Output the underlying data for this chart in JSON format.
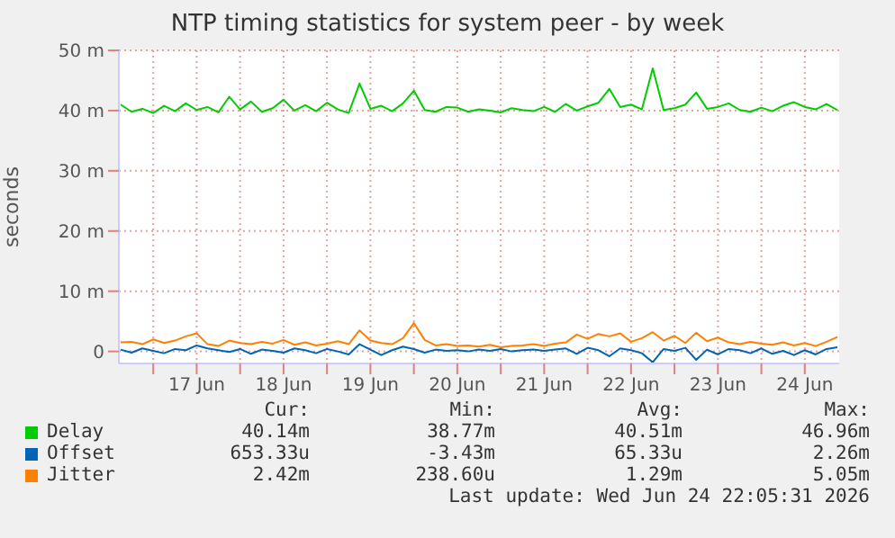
{
  "chart_data": {
    "type": "line",
    "title": "NTP timing statistics for system peer - by week",
    "ylabel": "seconds",
    "x": [
      "2026-06-16T15:00",
      "2026-06-16T18:00",
      "2026-06-16T21:00",
      "2026-06-17T00:00",
      "2026-06-17T03:00",
      "2026-06-17T06:00",
      "2026-06-17T09:00",
      "2026-06-17T12:00",
      "2026-06-17T15:00",
      "2026-06-17T18:00",
      "2026-06-17T21:00",
      "2026-06-18T00:00",
      "2026-06-18T03:00",
      "2026-06-18T06:00",
      "2026-06-18T09:00",
      "2026-06-18T12:00",
      "2026-06-18T15:00",
      "2026-06-18T18:00",
      "2026-06-18T21:00",
      "2026-06-19T00:00",
      "2026-06-19T03:00",
      "2026-06-19T06:00",
      "2026-06-19T09:00",
      "2026-06-19T12:00",
      "2026-06-19T15:00",
      "2026-06-19T18:00",
      "2026-06-19T21:00",
      "2026-06-20T00:00",
      "2026-06-20T03:00",
      "2026-06-20T06:00",
      "2026-06-20T09:00",
      "2026-06-20T12:00",
      "2026-06-20T15:00",
      "2026-06-20T18:00",
      "2026-06-20T21:00",
      "2026-06-21T00:00",
      "2026-06-21T03:00",
      "2026-06-21T06:00",
      "2026-06-21T09:00",
      "2026-06-21T12:00",
      "2026-06-21T15:00",
      "2026-06-21T18:00",
      "2026-06-21T21:00",
      "2026-06-22T00:00",
      "2026-06-22T03:00",
      "2026-06-22T06:00",
      "2026-06-22T09:00",
      "2026-06-22T12:00",
      "2026-06-22T15:00",
      "2026-06-22T18:00",
      "2026-06-22T21:00",
      "2026-06-23T00:00",
      "2026-06-23T03:00",
      "2026-06-23T06:00",
      "2026-06-23T09:00",
      "2026-06-23T12:00",
      "2026-06-23T15:00",
      "2026-06-23T18:00",
      "2026-06-23T21:00",
      "2026-06-24T00:00",
      "2026-06-24T03:00",
      "2026-06-24T06:00",
      "2026-06-24T09:00",
      "2026-06-24T12:00",
      "2026-06-24T15:00",
      "2026-06-24T18:00",
      "2026-06-24T21:00"
    ],
    "series": [
      {
        "name": "Delay",
        "color": "#00cc00",
        "values": [
          41.0,
          39.8,
          40.3,
          39.6,
          40.8,
          39.9,
          41.2,
          40.1,
          40.6,
          39.7,
          42.3,
          40.2,
          41.5,
          39.8,
          40.4,
          41.8,
          40.0,
          40.9,
          39.9,
          41.3,
          40.2,
          39.6,
          44.5,
          40.3,
          40.8,
          39.9,
          41.2,
          43.3,
          40.1,
          39.8,
          40.6,
          40.5,
          39.8,
          40.2,
          40.0,
          39.7,
          40.4,
          40.1,
          39.9,
          40.6,
          39.8,
          41.1,
          40.0,
          40.7,
          41.3,
          43.6,
          40.6,
          41.0,
          40.2,
          47.0,
          40.1,
          40.4,
          41.0,
          43.0,
          40.3,
          40.6,
          41.2,
          40.1,
          39.8,
          40.5,
          39.9,
          40.8,
          41.4,
          40.6,
          40.2,
          41.1,
          40.1
        ]
      },
      {
        "name": "Offset",
        "color": "#0066b3",
        "values": [
          0.3,
          -0.2,
          0.5,
          0.1,
          -0.3,
          0.4,
          0.2,
          1.0,
          0.5,
          0.2,
          -0.1,
          0.4,
          -0.4,
          0.3,
          0.1,
          -0.2,
          0.5,
          0.2,
          -0.3,
          0.4,
          0.0,
          -0.5,
          1.2,
          0.3,
          -0.6,
          0.2,
          0.8,
          0.4,
          -0.2,
          0.3,
          0.1,
          0.2,
          0.0,
          0.3,
          0.1,
          0.4,
          0.0,
          0.2,
          0.3,
          0.1,
          0.3,
          0.5,
          -0.4,
          0.6,
          0.2,
          -0.8,
          0.5,
          0.2,
          -0.3,
          -1.8,
          0.4,
          0.1,
          0.6,
          -1.4,
          0.3,
          -0.5,
          0.4,
          0.2,
          -0.3,
          0.5,
          -0.4,
          0.1,
          -0.6,
          0.2,
          -0.5,
          0.4,
          0.7
        ]
      },
      {
        "name": "Jitter",
        "color": "#ff8000",
        "values": [
          1.5,
          1.6,
          1.2,
          2.0,
          1.4,
          1.8,
          2.5,
          3.0,
          1.2,
          0.9,
          1.8,
          1.4,
          1.2,
          1.6,
          1.3,
          1.9,
          1.1,
          1.5,
          1.0,
          1.3,
          1.7,
          1.2,
          3.5,
          1.8,
          1.4,
          1.2,
          2.2,
          4.7,
          1.9,
          1.0,
          1.2,
          0.9,
          1.0,
          0.8,
          1.1,
          0.7,
          0.9,
          1.0,
          1.2,
          0.9,
          1.3,
          1.5,
          2.8,
          2.1,
          2.9,
          2.5,
          3.0,
          1.6,
          2.2,
          3.2,
          1.8,
          2.6,
          1.4,
          3.1,
          1.7,
          2.3,
          1.5,
          1.2,
          1.6,
          1.3,
          1.1,
          1.5,
          1.0,
          1.4,
          0.9,
          1.6,
          2.4
        ]
      }
    ],
    "xlim": [
      "2026-06-16T14:30",
      "2026-06-24T21:30"
    ],
    "xticks": [
      {
        "value": "2026-06-17T00:00",
        "label": null
      },
      {
        "value": "2026-06-17T12:00",
        "label": "17 Jun"
      },
      {
        "value": "2026-06-18T00:00",
        "label": null
      },
      {
        "value": "2026-06-18T12:00",
        "label": "18 Jun"
      },
      {
        "value": "2026-06-19T00:00",
        "label": null
      },
      {
        "value": "2026-06-19T12:00",
        "label": "19 Jun"
      },
      {
        "value": "2026-06-20T00:00",
        "label": null
      },
      {
        "value": "2026-06-20T12:00",
        "label": "20 Jun"
      },
      {
        "value": "2026-06-21T00:00",
        "label": null
      },
      {
        "value": "2026-06-21T12:00",
        "label": "21 Jun"
      },
      {
        "value": "2026-06-22T00:00",
        "label": null
      },
      {
        "value": "2026-06-22T12:00",
        "label": "22 Jun"
      },
      {
        "value": "2026-06-23T00:00",
        "label": null
      },
      {
        "value": "2026-06-23T12:00",
        "label": "23 Jun"
      },
      {
        "value": "2026-06-24T00:00",
        "label": null
      },
      {
        "value": "2026-06-24T12:00",
        "label": "24 Jun"
      }
    ],
    "ylim": [
      -2,
      50
    ],
    "yticks": [
      0,
      {
        "value": 10,
        "label": "10 m"
      },
      {
        "value": 20,
        "label": "20 m"
      },
      {
        "value": 30,
        "label": "30 m"
      },
      {
        "value": 40,
        "label": "40 m"
      },
      {
        "value": 50,
        "label": "50 m"
      }
    ],
    "grid": true,
    "legend": "bottom",
    "marker": "none",
    "line_style": "solid",
    "annotations": [
      "Cur:",
      "Min:",
      "Avg:",
      "Max:",
      "40.14m",
      "38.77m",
      "40.51m",
      "46.96m",
      "653.33u",
      "-3.43m",
      "65.33u",
      "2.26m",
      "2.42m",
      "238.60u",
      "1.29m",
      "5.05m",
      "Last update: Wed Jun 24 22:05:31 2026"
    ]
  }
}
